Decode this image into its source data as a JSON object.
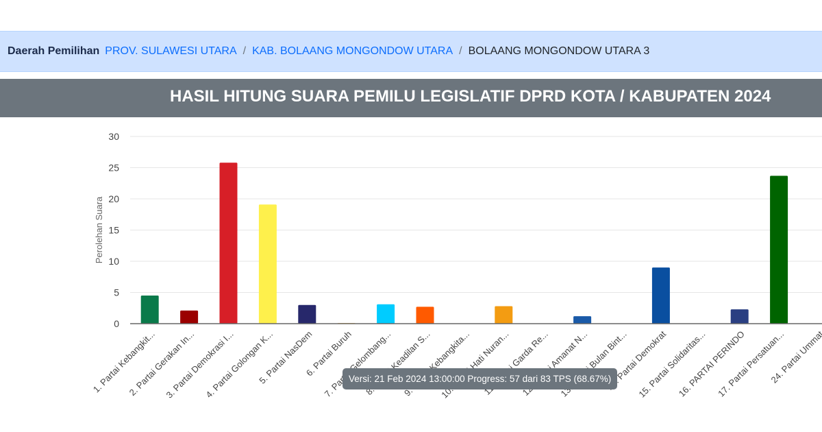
{
  "breadcrumb": {
    "label": "Daerah Pemilihan",
    "items": [
      "PROV. SULAWESI UTARA",
      "KAB. BOLAANG MONGONDOW UTARA"
    ],
    "current": "BOLAANG MONGONDOW UTARA 3",
    "separator": "/"
  },
  "header": {
    "title": "HASIL HITUNG SUARA PEMILU LEGISLATIF DPRD KOTA / KABUPATEN 2024"
  },
  "tooltip": {
    "text": "Versi: 21 Feb 2024 13:00:00 Progress: 57 dari 83 TPS (68.67%)"
  },
  "chart_data": {
    "type": "bar",
    "title": "",
    "xlabel": "",
    "ylabel": "Perolehan Suara",
    "ylim": [
      0,
      30
    ],
    "yticks": [
      0,
      5,
      10,
      15,
      20,
      25,
      30
    ],
    "grid": true,
    "categories": [
      "1. Partai Kebangkit...",
      "2. Partai Gerakan In...",
      "3. Partai Demokrasi I...",
      "4. Partai Golongan K...",
      "5. Partai NasDem",
      "6. Partai Buruh",
      "7. Partai Gelombang...",
      "8. Partai Keadilan S...",
      "9. Partai Kebangkita...",
      "10. Partai Hati Nuran...",
      "11. Partai Garda Re...",
      "12. Partai Amanat N...",
      "13. Partai Bulan Bint...",
      "14. Partai Demokrat",
      "15. Partai Solidaritas...",
      "16. PARTAI PERINDO",
      "17. Partai Persatuan...",
      "24. Partai Ummat"
    ],
    "values": [
      4.5,
      2.1,
      25.8,
      19.1,
      3.0,
      0.1,
      3.1,
      2.7,
      0,
      2.8,
      0,
      1.2,
      0,
      9.0,
      0,
      2.3,
      23.7,
      0
    ],
    "colors": [
      "#0a7a4a",
      "#9b0000",
      "#d71f27",
      "#fef04c",
      "#27286b",
      "#f5a623",
      "#00ccff",
      "#ff5a00",
      "#0a7a4a",
      "#f39c12",
      "#d10000",
      "#1a5aa8",
      "#00843d",
      "#0a4fa0",
      "#e5185c",
      "#2a3f82",
      "#006400",
      "#1d6b2f"
    ]
  }
}
